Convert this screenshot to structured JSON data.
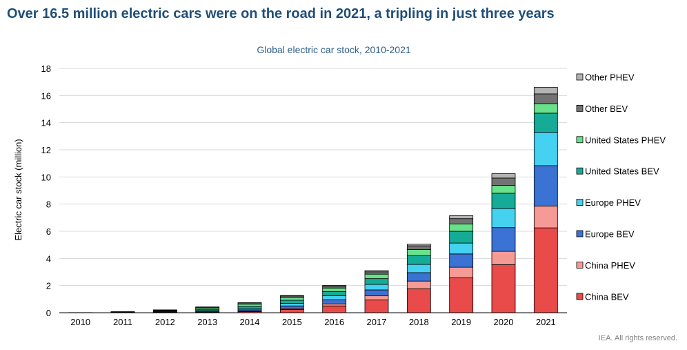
{
  "headline": "Over 16.5 million electric cars were on the road in 2021, a tripling in just three years",
  "source": "IEA. All rights reserved.",
  "colors": {
    "title": "#1f4e79",
    "subtitle": "#2e5f8a",
    "grid": "#d9d9d9"
  },
  "chart_data": {
    "type": "bar",
    "stacked": true,
    "title": "Global electric car stock, 2010-2021",
    "xlabel": "",
    "ylabel": "Electric car stock (million)",
    "ylim": [
      0,
      18
    ],
    "yticks": [
      0,
      2,
      4,
      6,
      8,
      10,
      12,
      14,
      16,
      18
    ],
    "grid": true,
    "legend_position": "right",
    "categories": [
      "2010",
      "2011",
      "2012",
      "2013",
      "2014",
      "2015",
      "2016",
      "2017",
      "2018",
      "2019",
      "2020",
      "2021"
    ],
    "series": [
      {
        "name": "China BEV",
        "color": "#e94a4a",
        "values": [
          0.0,
          0.01,
          0.02,
          0.03,
          0.08,
          0.23,
          0.5,
          0.95,
          1.77,
          2.58,
          3.54,
          6.25
        ]
      },
      {
        "name": "China PHEV",
        "color": "#f69a96",
        "values": [
          0.0,
          0.0,
          0.0,
          0.01,
          0.03,
          0.08,
          0.15,
          0.29,
          0.56,
          0.77,
          0.98,
          1.6
        ]
      },
      {
        "name": "Europe BEV",
        "color": "#3b73d4",
        "values": [
          0.0,
          0.01,
          0.02,
          0.06,
          0.1,
          0.19,
          0.31,
          0.44,
          0.62,
          0.98,
          1.75,
          2.98
        ]
      },
      {
        "name": "Europe PHEV",
        "color": "#45d1f0",
        "values": [
          0.0,
          0.0,
          0.02,
          0.05,
          0.09,
          0.18,
          0.29,
          0.41,
          0.61,
          0.8,
          1.4,
          2.47
        ]
      },
      {
        "name": "United States BEV",
        "color": "#16ab96",
        "values": [
          0.0,
          0.01,
          0.05,
          0.1,
          0.17,
          0.24,
          0.31,
          0.42,
          0.63,
          0.87,
          1.13,
          1.4
        ]
      },
      {
        "name": "United States PHEV",
        "color": "#69e08a",
        "values": [
          0.0,
          0.02,
          0.05,
          0.1,
          0.17,
          0.21,
          0.26,
          0.33,
          0.46,
          0.53,
          0.58,
          0.69
        ]
      },
      {
        "name": "Other BEV",
        "color": "#737373",
        "values": [
          0.01,
          0.03,
          0.04,
          0.06,
          0.08,
          0.1,
          0.13,
          0.17,
          0.28,
          0.4,
          0.54,
          0.73
        ]
      },
      {
        "name": "Other PHEV",
        "color": "#b3b3b3",
        "values": [
          0.0,
          0.0,
          0.01,
          0.02,
          0.02,
          0.04,
          0.06,
          0.09,
          0.12,
          0.22,
          0.32,
          0.48
        ]
      }
    ]
  }
}
